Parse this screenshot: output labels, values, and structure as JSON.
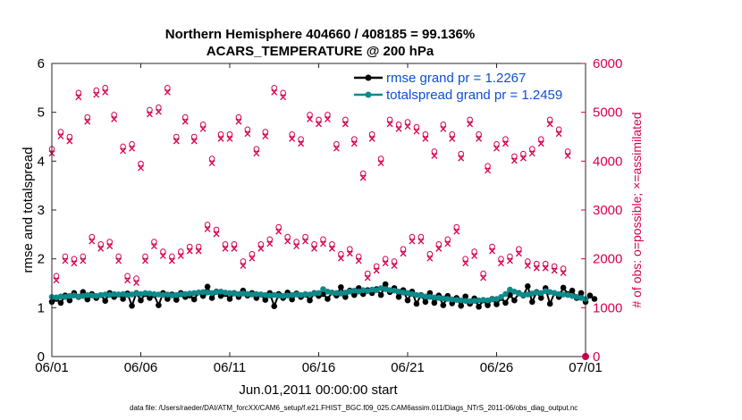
{
  "chart_data": {
    "type": "line",
    "title": "Northern Hemisphere 404660 / 408185 = 99.136%",
    "subtitle": "ACARS_TEMPERATURE @ 200 hPa",
    "xlabel": "Jun.01,2011 00:00:00 start",
    "ylabel": "rmse and totalspread",
    "y2label": "# of obs: o=possible; ×=assimilated",
    "xlim": [
      0,
      30
    ],
    "ylim": [
      0,
      6
    ],
    "y2lim": [
      0,
      6000
    ],
    "x_ticks": [
      {
        "x": 0,
        "label": "06/01"
      },
      {
        "x": 5,
        "label": "06/06"
      },
      {
        "x": 10,
        "label": "06/11"
      },
      {
        "x": 15,
        "label": "06/16"
      },
      {
        "x": 20,
        "label": "06/21"
      },
      {
        "x": 25,
        "label": "06/26"
      },
      {
        "x": 30,
        "label": "07/01"
      }
    ],
    "y_ticks": [
      "0",
      "1",
      "2",
      "3",
      "4",
      "5",
      "6"
    ],
    "y2_ticks": [
      "0",
      "1000",
      "2000",
      "3000",
      "4000",
      "5000",
      "6000"
    ],
    "legend": [
      {
        "label": "rmse grand pr = 1.2267",
        "color": "#000000"
      },
      {
        "label": "totalspread grand pr = 1.2459",
        "color": "#0f8a8a"
      }
    ],
    "colors": {
      "rmse": "#000000",
      "spread": "#0f8a8a",
      "obs": "#d6004f"
    },
    "x_step_days": 0.25,
    "rmse": [
      1.12,
      1.18,
      1.1,
      1.25,
      1.15,
      1.3,
      1.22,
      1.32,
      1.17,
      1.28,
      1.2,
      1.26,
      1.14,
      1.3,
      1.22,
      1.27,
      1.18,
      1.29,
      1.04,
      1.3,
      1.15,
      1.28,
      1.2,
      1.26,
      1.05,
      1.3,
      1.18,
      1.27,
      1.16,
      1.3,
      1.22,
      1.25,
      1.17,
      1.31,
      1.24,
      1.43,
      1.2,
      1.33,
      1.24,
      1.28,
      1.18,
      1.3,
      1.22,
      1.35,
      1.25,
      1.3,
      1.2,
      1.27,
      1.16,
      1.3,
      1.03,
      1.28,
      1.2,
      1.31,
      1.17,
      1.29,
      1.22,
      1.27,
      1.15,
      1.3,
      1.24,
      1.28,
      1.18,
      1.31,
      1.25,
      1.42,
      1.22,
      1.35,
      1.26,
      1.4,
      1.28,
      1.36,
      1.3,
      1.38,
      1.26,
      1.48,
      1.32,
      1.4,
      1.22,
      1.36,
      1.15,
      1.33,
      1.08,
      1.26,
      1.12,
      1.3,
      1.1,
      1.25,
      1.05,
      1.24,
      1.09,
      1.2,
      1.04,
      1.23,
      1.08,
      1.19,
      1.02,
      1.15,
      1.05,
      1.18,
      1.07,
      1.2,
      1.1,
      1.26,
      1.15,
      1.3,
      1.25,
      1.44,
      1.12,
      1.32,
      1.2,
      1.4,
      1.08,
      1.3,
      1.22,
      1.41,
      1.28,
      1.35,
      1.2,
      1.3,
      1.12,
      1.25,
      1.18
    ],
    "totalspread": [
      1.22,
      1.21,
      1.23,
      1.22,
      1.24,
      1.25,
      1.23,
      1.24,
      1.26,
      1.25,
      1.24,
      1.26,
      1.27,
      1.26,
      1.28,
      1.27,
      1.28,
      1.26,
      1.27,
      1.29,
      1.28,
      1.3,
      1.29,
      1.28,
      1.27,
      1.26,
      1.27,
      1.25,
      1.26,
      1.27,
      1.28,
      1.29,
      1.3,
      1.31,
      1.32,
      1.31,
      1.3,
      1.32,
      1.33,
      1.31,
      1.3,
      1.29,
      1.28,
      1.29,
      1.28,
      1.27,
      1.28,
      1.27,
      1.26,
      1.25,
      1.26,
      1.25,
      1.24,
      1.25,
      1.26,
      1.27,
      1.26,
      1.28,
      1.27,
      1.29,
      1.3,
      1.38,
      1.33,
      1.31,
      1.3,
      1.29,
      1.31,
      1.33,
      1.35,
      1.33,
      1.36,
      1.34,
      1.37,
      1.36,
      1.4,
      1.38,
      1.36,
      1.35,
      1.33,
      1.31,
      1.3,
      1.28,
      1.26,
      1.25,
      1.23,
      1.22,
      1.21,
      1.2,
      1.19,
      1.18,
      1.17,
      1.16,
      1.15,
      1.14,
      1.13,
      1.14,
      1.15,
      1.16,
      1.15,
      1.17,
      1.18,
      1.22,
      1.28,
      1.37,
      1.33,
      1.29,
      1.26,
      1.27,
      1.29,
      1.31,
      1.3,
      1.34,
      1.32,
      1.3,
      1.28,
      1.27,
      1.26,
      1.24,
      1.22,
      1.2,
      1.18
    ],
    "obs_possible": [
      4250,
      1650,
      4600,
      2050,
      4500,
      2000,
      5400,
      2050,
      4900,
      2450,
      5450,
      2300,
      5500,
      2350,
      4950,
      2050,
      4300,
      1650,
      4350,
      1600,
      3950,
      2050,
      5050,
      2350,
      5100,
      2150,
      5500,
      2050,
      4500,
      2150,
      4900,
      2250,
      4500,
      2250,
      4750,
      2700,
      4050,
      2600,
      4550,
      2300,
      4550,
      2300,
      4900,
      1950,
      4650,
      2100,
      4250,
      2300,
      4600,
      2400,
      5500,
      2650,
      5400,
      2450,
      4550,
      2350,
      4450,
      2450,
      4950,
      2300,
      4850,
      2400,
      4950,
      2300,
      4350,
      2100,
      4850,
      2200,
      4450,
      2050,
      3750,
      1700,
      4550,
      1850,
      4050,
      2000,
      4850,
      1950,
      4750,
      2200,
      4800,
      2450,
      4700,
      2450,
      4550,
      2100,
      4200,
      2300,
      4750,
      2400,
      4550,
      2650,
      4150,
      2000,
      4850,
      2150,
      4550,
      1700,
      3900,
      2250,
      4350,
      2000,
      4450,
      2050,
      4100,
      2200,
      4150,
      1950,
      4250,
      1900,
      4450,
      1900,
      4850,
      1850,
      4650,
      1800,
      4200
    ]
  },
  "footer": {
    "datafile": "data file: /Users/raeder/DAI/ATM_forcXX/CAM6_setup/f.e21.FHIST_BGC.f09_025.CAM6assim.011/Diags_NTrS_2011-06/obs_diag_output.nc"
  }
}
